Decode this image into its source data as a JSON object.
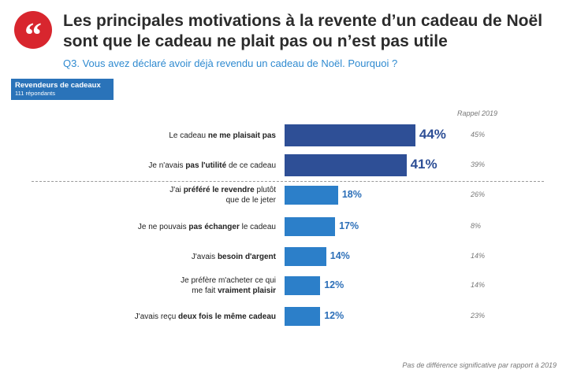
{
  "header": {
    "quote_glyph": "“",
    "title": "Les principales motivations à la revente d’un cadeau de Noël sont que le cadeau ne plait pas ou n’est pas utile",
    "subtitle": "Q3. Vous avez déclaré avoir déjà revendu un cadeau de Noël. Pourquoi ?"
  },
  "sample": {
    "label": "Revendeurs de cadeaux",
    "count": "111 répondants"
  },
  "comparison_header": "Rappel 2019",
  "footnote": "Pas de différence significative par rapport à 2019",
  "colors": {
    "accent_red": "#d8262e",
    "bar_top": "#2e4f96",
    "bar_other": "#2c7fc9",
    "subtitle_blue": "#2f8ad0"
  },
  "chart_data": {
    "type": "bar",
    "orientation": "horizontal",
    "unit": "%",
    "categories": [
      "Le cadeau ne me plaisait pas",
      "Je n'avais pas l'utilité de ce cadeau",
      "J'ai préféré le revendre plutôt que de le jeter",
      "Je ne pouvais pas échanger le cadeau",
      "J'avais besoin d'argent",
      "Je préfère m'acheter ce qui me fait vraiment plaisir",
      "J'avais reçu deux fois le même cadeau"
    ],
    "series": [
      {
        "name": "",
        "values": [
          44,
          41,
          18,
          17,
          14,
          12,
          12
        ]
      },
      {
        "name": "Rappel 2019",
        "values": [
          45,
          39,
          26,
          8,
          14,
          14,
          23
        ]
      }
    ],
    "value_labels": [
      "44%",
      "41%",
      "18%",
      "17%",
      "14%",
      "12%",
      "12%"
    ],
    "previous_labels": [
      "45%",
      "39%",
      "26%",
      "8%",
      "14%",
      "14%",
      "23%"
    ],
    "label_parts": [
      [
        [
          "Le cadeau ",
          false
        ],
        [
          "ne me plaisait pas",
          true
        ]
      ],
      [
        [
          "Je n'avais ",
          false
        ],
        [
          "pas l'utilité",
          true
        ],
        [
          " de ce cadeau",
          false
        ]
      ],
      [
        [
          "J'ai ",
          false
        ],
        [
          "préféré le revendre",
          true
        ],
        [
          " plutôt",
          false
        ],
        [
          "\n",
          false
        ],
        [
          "que de le jeter",
          false
        ]
      ],
      [
        [
          "Je ne pouvais ",
          false
        ],
        [
          "pas échanger",
          true
        ],
        [
          " le cadeau",
          false
        ]
      ],
      [
        [
          "J'avais ",
          false
        ],
        [
          "besoin d'argent",
          true
        ]
      ],
      [
        [
          "Je préfère m'acheter ce qui",
          false
        ],
        [
          "\n",
          false
        ],
        [
          "me fait ",
          false
        ],
        [
          "vraiment plaisir",
          true
        ]
      ],
      [
        [
          "J'avais reçu ",
          false
        ],
        [
          "deux fois le même cadeau",
          true
        ]
      ]
    ],
    "highlighted_top": 2,
    "divider_after": 2,
    "xlim": [
      0,
      100
    ],
    "grid": false
  }
}
